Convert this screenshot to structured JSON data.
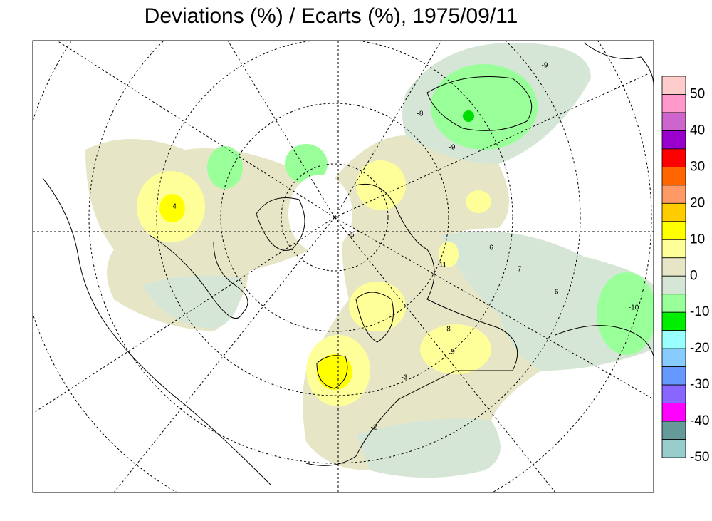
{
  "title": "Deviations (%) / Ecarts (%), 1975/09/11",
  "legend": {
    "colors": [
      "#ffcccc",
      "#ff99cc",
      "#cc66cc",
      "#9900cc",
      "#ff0000",
      "#ff6600",
      "#ff9966",
      "#ffcc00",
      "#ffff00",
      "#ffff99",
      "#e6e6c6",
      "#d6e6d6",
      "#99ff99",
      "#00ee00",
      "#99ffff",
      "#88ccff",
      "#6699ff",
      "#8866ff",
      "#ff00ff",
      "#669999",
      "#99cccc"
    ],
    "labels": [
      50,
      40,
      30,
      20,
      10,
      0,
      -10,
      -20,
      -30,
      -40,
      -50
    ]
  },
  "station_labels": [
    "-9",
    "-9",
    "-8",
    "4",
    "-10",
    "-5",
    "-7",
    "11",
    "8",
    "9",
    "6",
    "-6",
    "-2",
    "-3"
  ]
}
